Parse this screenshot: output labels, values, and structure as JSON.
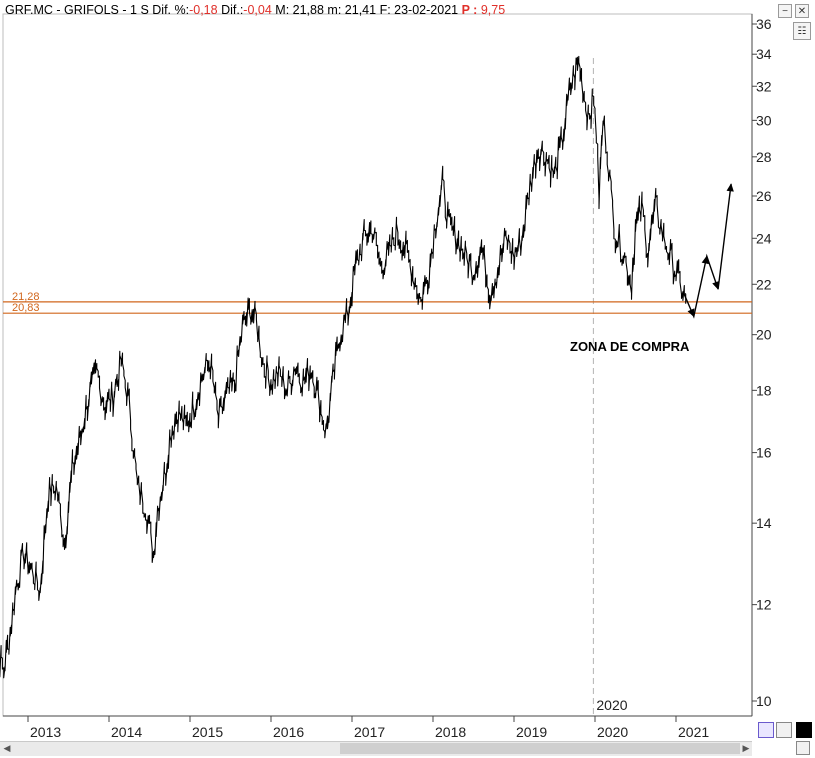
{
  "header": {
    "ticker": "GRF.MC - GRIFOLS -",
    "period": "1 S",
    "dif_pct_label": "Dif. %:",
    "dif_pct_value": "-0,18",
    "dif_label": "Dif.:",
    "dif_value": "-0,04",
    "max_label": "M:",
    "max_value": "21,88",
    "min_label": "m:",
    "min_value": "21,41",
    "date_label": "F:",
    "date_value": "23-02-2021",
    "p_label": "P :",
    "p_value": "9,75"
  },
  "chart_data": {
    "type": "line",
    "title": "",
    "xlabel": "",
    "ylabel": "",
    "yscale": "log",
    "ylim": [
      9.6,
      36.6
    ],
    "yticks": [
      "36",
      "34",
      "32",
      "30",
      "28",
      "26",
      "24",
      "22",
      "20",
      "18",
      "16",
      "14",
      "12",
      "10"
    ],
    "xticks": [
      "2013",
      "2014",
      "2015",
      "2016",
      "2017",
      "2018",
      "2019",
      "2020",
      "2021"
    ],
    "x_marker_label": "2020",
    "series": [
      {
        "values_x": [
          2012.55,
          2012.62,
          2012.7,
          2012.78,
          2012.86,
          2012.95,
          2013.05,
          2013.15,
          2013.25,
          2013.35,
          2013.45,
          2013.55,
          2013.65,
          2013.75,
          2013.85,
          2013.95,
          2014.05,
          2014.15,
          2014.25,
          2014.35,
          2014.45,
          2014.55,
          2014.6,
          2014.7,
          2014.75,
          2014.85,
          2014.95,
          2015.05,
          2015.15,
          2015.25,
          2015.35,
          2015.45,
          2015.55,
          2015.65,
          2015.75,
          2015.82,
          2015.9,
          2016.0,
          2016.1,
          2016.2,
          2016.3,
          2016.4,
          2016.5,
          2016.6,
          2016.68,
          2016.75,
          2016.85,
          2016.95,
          2017.05,
          2017.15,
          2017.25,
          2017.35,
          2017.45,
          2017.55,
          2017.65,
          2017.75,
          2017.85,
          2017.95,
          2018.05,
          2018.12,
          2018.2,
          2018.3,
          2018.4,
          2018.5,
          2018.6,
          2018.7,
          2018.8,
          2018.9,
          2019.0,
          2019.1,
          2019.2,
          2019.3,
          2019.4,
          2019.5,
          2019.6,
          2019.7,
          2019.8,
          2019.9,
          2020.0,
          2020.05,
          2020.1,
          2020.15,
          2020.2,
          2020.25,
          2020.35,
          2020.45,
          2020.5,
          2020.58,
          2020.65,
          2020.75,
          2020.85,
          2020.95,
          2021.05,
          2021.12
        ],
        "values_y": [
          11.5,
          11.0,
          10.6,
          11.4,
          12.5,
          13.2,
          12.8,
          12.3,
          14.8,
          15.0,
          13.5,
          15.5,
          16.5,
          17.8,
          18.6,
          17.5,
          17.8,
          19.0,
          17.5,
          15.0,
          14.5,
          13.2,
          14.4,
          15.5,
          16.5,
          17.3,
          16.8,
          17.5,
          18.5,
          19.0,
          17.0,
          17.8,
          18.2,
          20.3,
          21.0,
          20.5,
          19.0,
          18.3,
          18.6,
          18.0,
          18.9,
          18.3,
          18.8,
          17.6,
          16.6,
          18.0,
          20.0,
          20.8,
          22.8,
          24.0,
          24.5,
          22.8,
          23.2,
          24.3,
          23.6,
          22.5,
          21.3,
          22.6,
          25.2,
          26.5,
          24.5,
          24.0,
          23.2,
          22.6,
          23.6,
          21.7,
          22.6,
          24.0,
          23.2,
          24.0,
          26.6,
          28.5,
          28.0,
          27.0,
          29.0,
          32.0,
          33.5,
          30.5,
          31.0,
          26.0,
          30.0,
          28.5,
          26.0,
          24.3,
          23.4,
          22.0,
          24.5,
          25.4,
          23.5,
          25.5,
          24.0,
          23.0,
          22.0,
          21.4
        ]
      }
    ],
    "hlines": [
      {
        "label": "21,28",
        "value": 21.28,
        "color": "#d1661c"
      },
      {
        "label": "20,83",
        "value": 20.83,
        "color": "#d1661c"
      }
    ],
    "annotation": "ZONA DE COMPRA",
    "projection": {
      "values_x": [
        2021.1,
        2021.22,
        2021.38,
        2021.52,
        2021.68
      ],
      "values_y": [
        21.6,
        20.7,
        23.2,
        21.8,
        26.6
      ]
    }
  },
  "scrollbar": {
    "left_arrow": "◀",
    "right_arrow": "▶"
  }
}
